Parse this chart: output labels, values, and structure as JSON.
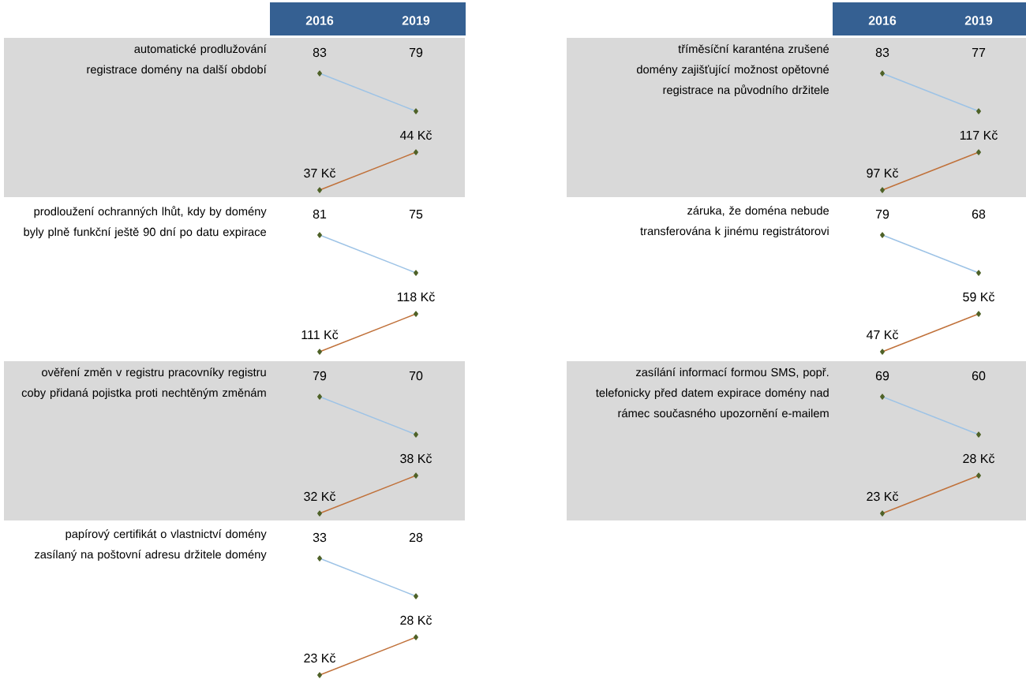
{
  "chart_data": [
    {
      "type": "line",
      "title": "automatické prodlužování registrace domény na další období",
      "categories": [
        "2016",
        "2019"
      ],
      "marker": "diamond",
      "line_style": "solid",
      "tick_labels": "x",
      "series": [
        {
          "color": "#9dc3e6",
          "values": [
            83,
            79
          ],
          "value_labels": [
            "83",
            "79"
          ]
        }
      ]
    },
    {
      "type": "line",
      "categories": [
        "2016",
        "2019"
      ],
      "marker": "diamond",
      "line_style": "solid",
      "tick_labels": false,
      "series": [
        {
          "color": "#c0713a",
          "values": [
            37,
            44
          ],
          "value_labels": [
            "37 Kč",
            "44 Kč"
          ]
        }
      ]
    },
    {
      "type": "line",
      "title": "tříměsíční karanténa zrušené domény zajišťující možnost opětovné registrace na původního držitele",
      "categories": [
        "2016",
        "2019"
      ],
      "marker": "diamond",
      "line_style": "solid",
      "tick_labels": "x",
      "series": [
        {
          "color": "#9dc3e6",
          "values": [
            83,
            77
          ],
          "value_labels": [
            "83",
            "77"
          ]
        }
      ]
    },
    {
      "type": "line",
      "categories": [
        "2016",
        "2019"
      ],
      "marker": "diamond",
      "line_style": "solid",
      "tick_labels": false,
      "series": [
        {
          "color": "#c0713a",
          "values": [
            97,
            117
          ],
          "value_labels": [
            "97 Kč",
            "117 Kč"
          ]
        }
      ]
    },
    {
      "type": "line",
      "title": "prodloužení ochranných lhůt, kdy by domény byly plně funkční ještě 90 dní po datu expirace",
      "categories": [
        "2016",
        "2019"
      ],
      "marker": "diamond",
      "line_style": "solid",
      "tick_labels": false,
      "series": [
        {
          "color": "#9dc3e6",
          "values": [
            81,
            75
          ],
          "value_labels": [
            "81",
            "75"
          ]
        }
      ]
    },
    {
      "type": "line",
      "categories": [
        "2016",
        "2019"
      ],
      "marker": "diamond",
      "line_style": "solid",
      "tick_labels": false,
      "series": [
        {
          "color": "#c0713a",
          "values": [
            111,
            118
          ],
          "value_labels": [
            "111 Kč",
            "118 Kč"
          ]
        }
      ]
    },
    {
      "type": "line",
      "title": "záruka, že doména nebude transferována k jinému registrátorovi",
      "categories": [
        "2016",
        "2019"
      ],
      "marker": "diamond",
      "line_style": "solid",
      "tick_labels": false,
      "series": [
        {
          "color": "#9dc3e6",
          "values": [
            79,
            68
          ],
          "value_labels": [
            "79",
            "68"
          ]
        }
      ]
    },
    {
      "type": "line",
      "categories": [
        "2016",
        "2019"
      ],
      "marker": "diamond",
      "line_style": "solid",
      "tick_labels": false,
      "series": [
        {
          "color": "#c0713a",
          "values": [
            47,
            59
          ],
          "value_labels": [
            "47 Kč",
            "59 Kč"
          ]
        }
      ]
    },
    {
      "type": "line",
      "title": "ověření změn v registru pracovníky registru coby přidaná pojistka proti nechtěným změnám",
      "categories": [
        "2016",
        "2019"
      ],
      "marker": "diamond",
      "line_style": "solid",
      "tick_labels": false,
      "series": [
        {
          "color": "#9dc3e6",
          "values": [
            79,
            70
          ],
          "value_labels": [
            "79",
            "70"
          ]
        }
      ]
    },
    {
      "type": "line",
      "categories": [
        "2016",
        "2019"
      ],
      "marker": "diamond",
      "line_style": "solid",
      "tick_labels": false,
      "series": [
        {
          "color": "#c0713a",
          "values": [
            32,
            38
          ],
          "value_labels": [
            "32 Kč",
            "38 Kč"
          ]
        }
      ]
    },
    {
      "type": "line",
      "title": "zasílání informací formou SMS, popř. telefonicky před datem expirace domény nad rámec současného upozornění e-mailem",
      "categories": [
        "2016",
        "2019"
      ],
      "marker": "diamond",
      "line_style": "solid",
      "tick_labels": false,
      "series": [
        {
          "color": "#9dc3e6",
          "values": [
            69,
            60
          ],
          "value_labels": [
            "69",
            "60"
          ]
        }
      ]
    },
    {
      "type": "line",
      "categories": [
        "2016",
        "2019"
      ],
      "marker": "diamond",
      "line_style": "solid",
      "tick_labels": false,
      "series": [
        {
          "color": "#c0713a",
          "values": [
            23,
            28
          ],
          "value_labels": [
            "23 Kč",
            "28 Kč"
          ]
        }
      ]
    },
    {
      "type": "line",
      "title": "papírový certifikát o vlastnictví domény zasílaný na poštovní adresu držitele domény",
      "categories": [
        "2016",
        "2019"
      ],
      "marker": "diamond",
      "line_style": "solid",
      "tick_labels": false,
      "series": [
        {
          "color": "#9dc3e6",
          "values": [
            33,
            28
          ],
          "value_labels": [
            "33",
            "28"
          ]
        }
      ]
    },
    {
      "type": "line",
      "categories": [
        "2016",
        "2019"
      ],
      "marker": "diamond",
      "line_style": "solid",
      "tick_labels": false,
      "series": [
        {
          "color": "#c0713a",
          "values": [
            23,
            28
          ],
          "value_labels": [
            "23 Kč",
            "28 Kč"
          ]
        }
      ]
    }
  ]
}
